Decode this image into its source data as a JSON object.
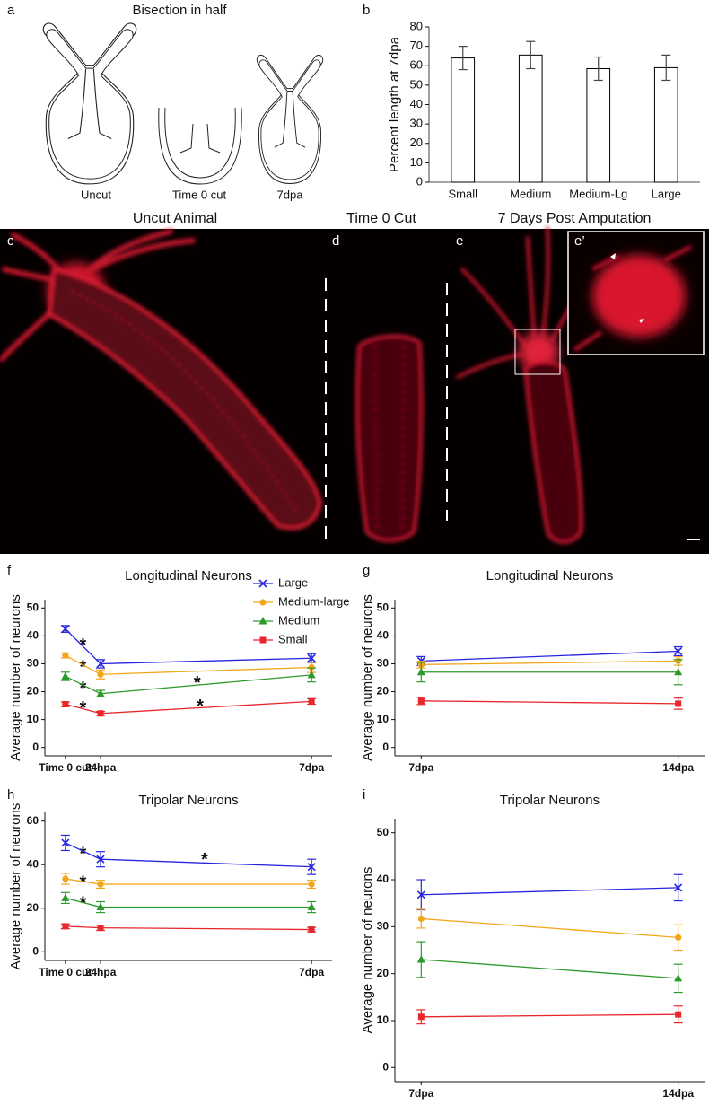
{
  "diagram": {
    "panel": "a",
    "title": "Bisection in half",
    "labels": [
      "Uncut",
      "Time 0 cut",
      "7dpa"
    ]
  },
  "images": {
    "titles": [
      "Uncut Animal",
      "Time 0 Cut",
      "7 Days Post Amputation"
    ],
    "panel_labels": [
      "c",
      "d",
      "e",
      "e’"
    ]
  },
  "chart_data": [
    {
      "panel": "b",
      "type": "bar",
      "y_label": "Percent length at 7dpa",
      "categories": [
        "Small",
        "Medium",
        "Medium-Lg",
        "Large"
      ],
      "values": [
        64,
        65.5,
        58.5,
        59
      ],
      "errors": [
        6,
        7,
        6,
        6.5
      ],
      "color": "#ffffff",
      "edgecolor": "#000000",
      "ylim": [
        0,
        80
      ],
      "yticks": [
        0,
        10,
        20,
        30,
        40,
        50,
        60,
        70,
        80
      ]
    },
    {
      "panel": "f",
      "type": "line",
      "title": "Longitudinal Neurons",
      "y_label": "Average number of neurons",
      "x": [
        0,
        24,
        168
      ],
      "xlim": [
        -14,
        182
      ],
      "xticks": [
        {
          "value": 0,
          "label": "Time 0 cut"
        },
        {
          "value": 24,
          "label": "24hpa"
        },
        {
          "value": 168,
          "label": "7dpa"
        }
      ],
      "ylim": [
        -3,
        53
      ],
      "yticks": [
        0,
        10,
        20,
        30,
        40,
        50
      ],
      "legend": "top-right",
      "series": [
        {
          "name": "Large",
          "color": "#2626e0",
          "marker": "x",
          "values": [
            42.5,
            30,
            32
          ],
          "errors": [
            1.2,
            1.5,
            1.6
          ]
        },
        {
          "name": "Medium-large",
          "color": "#f2a71b",
          "marker": "circle",
          "values": [
            33,
            26.2,
            28.7
          ],
          "errors": [
            0.9,
            1.6,
            1.8
          ]
        },
        {
          "name": "Medium",
          "color": "#2e9a2e",
          "marker": "triangle",
          "values": [
            25.5,
            19.3,
            26
          ],
          "errors": [
            1.5,
            1.2,
            2.5
          ]
        },
        {
          "name": "Small",
          "color": "#e8262b",
          "marker": "square",
          "values": [
            15.5,
            12.2,
            16.5
          ],
          "errors": [
            0.8,
            0.7,
            1
          ]
        }
      ],
      "annotations": [
        {
          "text": "*",
          "x": 12,
          "y": 38
        },
        {
          "text": "*",
          "x": 12,
          "y": 30
        },
        {
          "text": "*",
          "x": 12,
          "y": 22.5
        },
        {
          "text": "*",
          "x": 12,
          "y": 15.5
        },
        {
          "text": "*",
          "x": 90,
          "y": 24.5
        },
        {
          "text": "*",
          "x": 92,
          "y": 16
        }
      ]
    },
    {
      "panel": "g",
      "type": "line",
      "title": "Longitudinal Neurons",
      "y_label": "Average number of neurons",
      "categories": [
        "7dpa",
        "14dpa"
      ],
      "ylim": [
        -3,
        53
      ],
      "yticks": [
        0,
        10,
        20,
        30,
        40,
        50
      ],
      "series": [
        {
          "color": "#2626e0",
          "marker": "x",
          "values": [
            31,
            34.5
          ],
          "errors": [
            1.6,
            1.6
          ]
        },
        {
          "color": "#f2a71b",
          "marker": "circle",
          "values": [
            29.7,
            31
          ],
          "errors": [
            1.2,
            1.5
          ]
        },
        {
          "color": "#2e9a2e",
          "marker": "triangle",
          "values": [
            27,
            27
          ],
          "errors": [
            3.5,
            4.5
          ]
        },
        {
          "color": "#e8262b",
          "marker": "square",
          "values": [
            16.7,
            15.7
          ],
          "errors": [
            1.3,
            2
          ]
        }
      ]
    },
    {
      "panel": "h",
      "type": "line",
      "title": "Tripolar Neurons",
      "y_label": "Average number of neurons",
      "x": [
        0,
        24,
        168
      ],
      "xlim": [
        -14,
        182
      ],
      "xticks": [
        {
          "value": 0,
          "label": "Time 0 cut"
        },
        {
          "value": 24,
          "label": "24hpa"
        },
        {
          "value": 168,
          "label": "7dpa"
        }
      ],
      "ylim": [
        -4,
        64
      ],
      "yticks": [
        0,
        20,
        40,
        60
      ],
      "series": [
        {
          "color": "#2626e0",
          "marker": "x",
          "values": [
            50,
            42.5,
            39
          ],
          "errors": [
            3.5,
            3.5,
            3.5
          ]
        },
        {
          "color": "#f2a71b",
          "marker": "circle",
          "values": [
            33.5,
            31,
            31
          ],
          "errors": [
            2.5,
            1.8,
            1.8
          ]
        },
        {
          "color": "#2e9a2e",
          "marker": "triangle",
          "values": [
            24.7,
            20.5,
            20.5
          ],
          "errors": [
            2.5,
            2.5,
            2.5
          ]
        },
        {
          "color": "#e8262b",
          "marker": "square",
          "values": [
            11.7,
            11,
            10.2
          ],
          "errors": [
            1.1,
            1.2,
            1
          ]
        }
      ],
      "annotations": [
        {
          "text": "*",
          "x": 12,
          "y": 46.5
        },
        {
          "text": "*",
          "x": 95,
          "y": 44
        },
        {
          "text": "*",
          "x": 12,
          "y": 33.5
        },
        {
          "text": "*",
          "x": 12,
          "y": 24
        }
      ]
    },
    {
      "panel": "i",
      "type": "line",
      "title": "Tripolar Neurons",
      "y_label": "Average number of neurons",
      "categories": [
        "7dpa",
        "14dpa"
      ],
      "ylim": [
        -3,
        53
      ],
      "yticks": [
        0,
        10,
        20,
        30,
        40,
        50
      ],
      "series": [
        {
          "color": "#2626e0",
          "marker": "x",
          "values": [
            36.8,
            38.3
          ],
          "errors": [
            3.2,
            2.8
          ]
        },
        {
          "color": "#f2a71b",
          "marker": "circle",
          "values": [
            31.7,
            27.7
          ],
          "errors": [
            2,
            2.7
          ]
        },
        {
          "color": "#2e9a2e",
          "marker": "triangle",
          "values": [
            23,
            19
          ],
          "errors": [
            3.8,
            3
          ]
        },
        {
          "color": "#e8262b",
          "marker": "square",
          "values": [
            10.8,
            11.3
          ],
          "errors": [
            1.5,
            1.8
          ]
        }
      ]
    }
  ]
}
